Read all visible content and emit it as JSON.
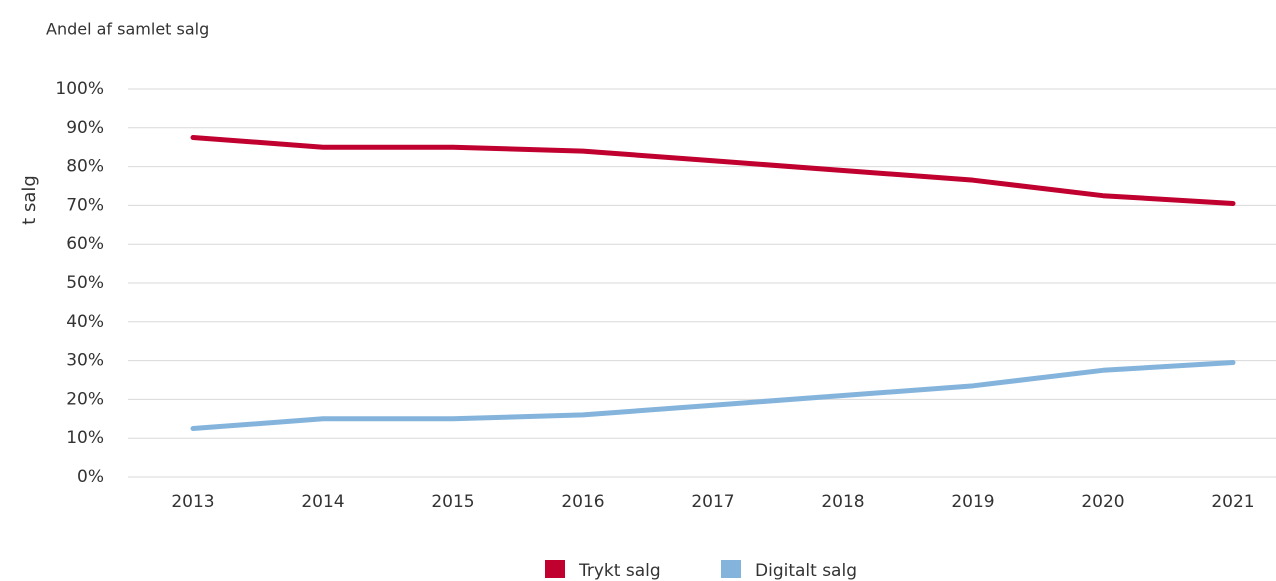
{
  "chart_data": {
    "type": "line",
    "title": "Andel af samlet salg",
    "y_label": "t salg",
    "categories": [
      "2013",
      "2014",
      "2015",
      "2016",
      "2017",
      "2018",
      "2019",
      "2020",
      "2021"
    ],
    "series": [
      {
        "name": "Trykt salg",
        "color": "#c0002f",
        "values": [
          87.5,
          85,
          85,
          84,
          81.5,
          79,
          76.5,
          72.5,
          70.5
        ]
      },
      {
        "name": "Digitalt salg",
        "color": "#84b4dc",
        "values": [
          12.5,
          15,
          15,
          16,
          18.5,
          21,
          23.5,
          27.5,
          29.5
        ]
      }
    ],
    "ylim": [
      0,
      100
    ],
    "yticks": [
      {
        "value": 0,
        "label": "0%"
      },
      {
        "value": 10,
        "label": "10%"
      },
      {
        "value": 20,
        "label": "20%"
      },
      {
        "value": 30,
        "label": "30%"
      },
      {
        "value": 40,
        "label": "40%"
      },
      {
        "value": 50,
        "label": "50%"
      },
      {
        "value": 60,
        "label": "60%"
      },
      {
        "value": 70,
        "label": "70%"
      },
      {
        "value": 80,
        "label": "80%"
      },
      {
        "value": 90,
        "label": "90%"
      },
      {
        "value": 100,
        "label": "100%"
      }
    ],
    "grid": true,
    "legend": "bottom"
  }
}
